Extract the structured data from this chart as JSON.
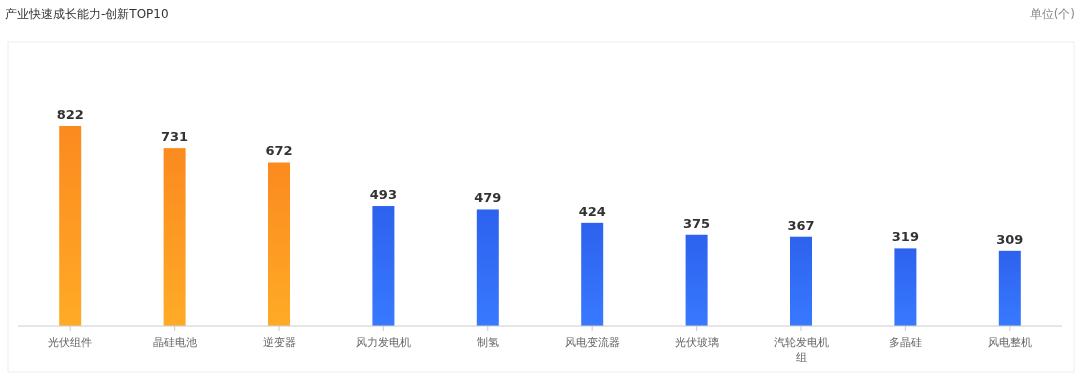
{
  "chart_data": {
    "type": "bar",
    "title": "产业快速成长能力-创新TOP10",
    "annotations": [
      "单位(个)"
    ],
    "categories": [
      "光伏组件",
      "晶硅电池",
      "逆变器",
      "风力发电机",
      "制氢",
      "风电变流器",
      "光伏玻璃",
      "汽轮发电机组",
      "多晶硅",
      "风电整机"
    ],
    "values": [
      822,
      731,
      672,
      493,
      479,
      424,
      375,
      367,
      319,
      309
    ],
    "colors": [
      "#fb8a1f",
      "#fb8a1f",
      "#fb8a1f",
      "#2d62ee",
      "#2d62ee",
      "#2d62ee",
      "#2d62ee",
      "#2d62ee",
      "#2d62ee",
      "#2d62ee"
    ],
    "relative": false,
    "data_labels": true
  }
}
